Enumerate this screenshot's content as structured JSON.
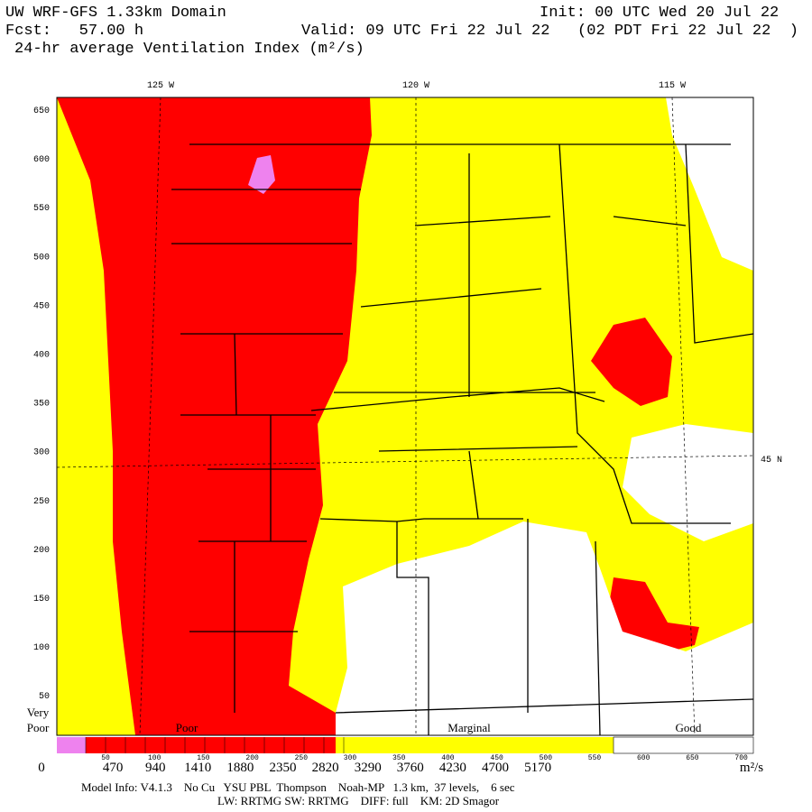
{
  "header": {
    "model": "UW WRF-GFS 1.33km Domain",
    "init": "Init: 00 UTC Wed 20 Jul 22",
    "forecast": "Fcst:   57.00 h",
    "valid": "Valid: 09 UTC Fri 22 Jul 22   (02 PDT Fri 22 Jul 22  )",
    "field": "24-hr average Ventilation Index (m²/s)"
  },
  "map": {
    "longitude_labels": [
      "125 W",
      "120 W",
      "115 W"
    ],
    "latitude_label": "45 N",
    "grid_labels": [
      "650",
      "600",
      "550",
      "500",
      "450",
      "400",
      "350",
      "300",
      "250",
      "200",
      "150",
      "100",
      "50"
    ]
  },
  "colorbar": {
    "categories": [
      [
        "Very",
        "Poor"
      ],
      [
        "Poor"
      ],
      [
        "Marginal"
      ],
      [
        "Good"
      ]
    ],
    "labels": [
      "0",
      "470",
      "940",
      "1410",
      "1880",
      "2350",
      "2820",
      "3290",
      "3760",
      "4230",
      "4700",
      "5170"
    ],
    "unit": "m²/s",
    "secondary_labels": [
      "50",
      "100",
      "150",
      "200",
      "250",
      "300",
      "350",
      "400",
      "450",
      "500",
      "550",
      "600",
      "650",
      "700"
    ]
  },
  "footer": {
    "model_info": "Model Info: V4.1.3    No Cu   YSU PBL  Thompson    Noah-MP   1.3 km,  37 levels,    6 sec",
    "physics": "LW: RRTMG SW: RRTMG    DIFF: full    KM: 2D Smagor"
  }
}
